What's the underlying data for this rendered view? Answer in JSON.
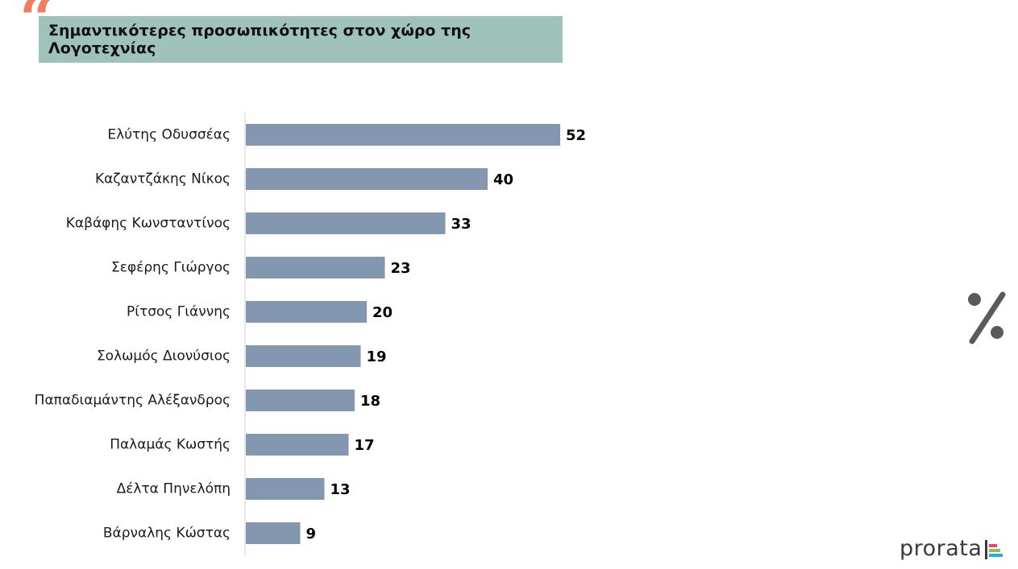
{
  "header": {
    "title": "Σημαντικότερες προσωπικότητες στον χώρο της Λογοτεχνίας",
    "quote_mark": "“"
  },
  "percent_symbol": "%",
  "logo": {
    "text": "prorata"
  },
  "colors": {
    "bar": "#8497b0",
    "title_bg": "#9fc3ba",
    "quote": "#f07c63",
    "axis": "#d0d0d0"
  },
  "chart_data": {
    "type": "bar",
    "orientation": "horizontal",
    "title": "Σημαντικότερες προσωπικότητες στον χώρο της Λογοτεχνίας",
    "xlabel": "",
    "ylabel": "",
    "unit": "%",
    "categories": [
      "Ελύτης Οδυσσέας",
      "Καζαντζάκης Νίκος",
      "Καβάφης Κωνσταντίνος",
      "Σεφέρης Γιώργος",
      "Ρίτσος Γιάννης",
      "Σολωμός Διονύσιος",
      "Παπαδιαμάντης Αλέξανδρος",
      "Παλαμάς Κωστής",
      "Δέλτα Πηνελόπη",
      "Βάρναλης Κώστας"
    ],
    "values": [
      52,
      40,
      33,
      23,
      20,
      19,
      18,
      17,
      13,
      9
    ],
    "xlim": [
      0,
      52
    ],
    "grid": false,
    "data_labels": true
  }
}
